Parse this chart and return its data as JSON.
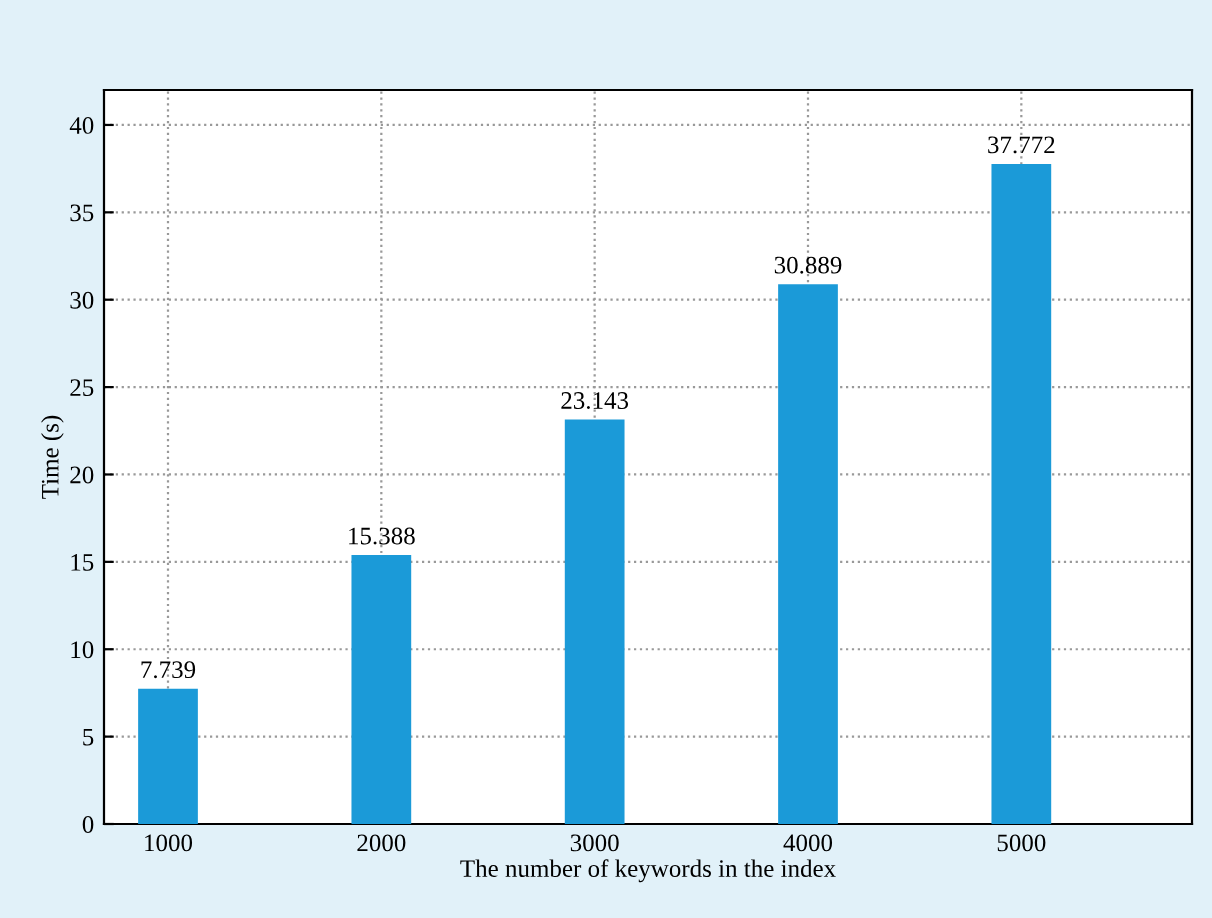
{
  "chart_data": {
    "type": "bar",
    "xlabel": "The number of keywords in the index",
    "ylabel": "Time (s)",
    "categories": [
      "1000",
      "2000",
      "3000",
      "4000",
      "5000"
    ],
    "values": [
      7.739,
      15.388,
      23.143,
      30.889,
      37.772
    ],
    "color": "#1b9ad8",
    "data_labels": true,
    "ylim": [
      0,
      42
    ],
    "yticks": [
      0,
      5,
      10,
      15,
      20,
      25,
      30,
      35,
      40
    ],
    "grid": true
  }
}
